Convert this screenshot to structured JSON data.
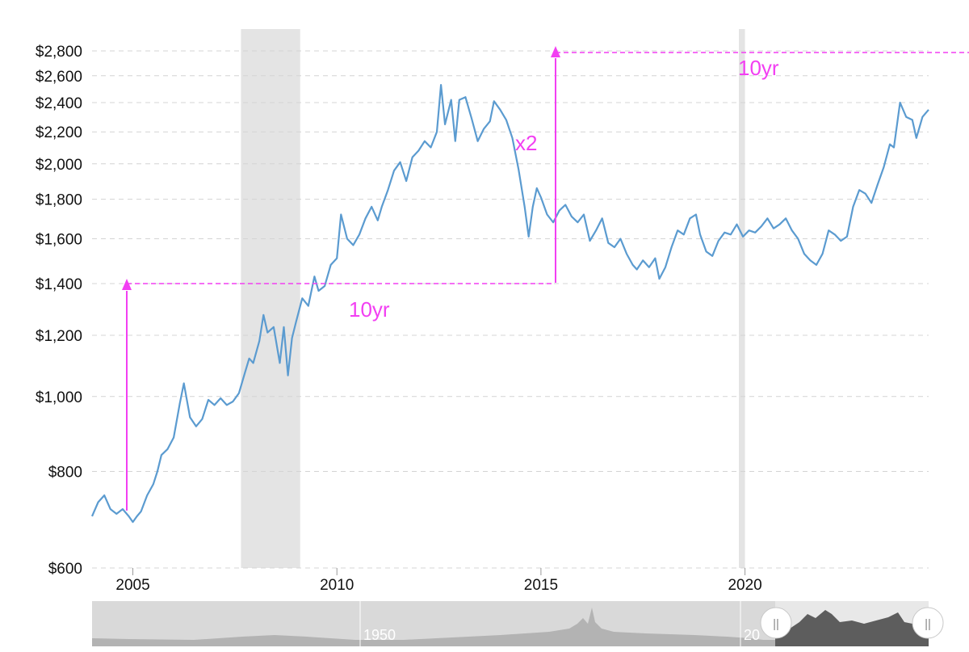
{
  "chart_data": {
    "type": "line",
    "scale": "log",
    "ylim": [
      600,
      2800
    ],
    "xlim": [
      2004.0,
      2024.5
    ],
    "yticks": [
      {
        "value": 600,
        "label": "$600"
      },
      {
        "value": 800,
        "label": "$800"
      },
      {
        "value": 1000,
        "label": "$1,000"
      },
      {
        "value": 1200,
        "label": "$1,200"
      },
      {
        "value": 1400,
        "label": "$1,400"
      },
      {
        "value": 1600,
        "label": "$1,600"
      },
      {
        "value": 1800,
        "label": "$1,800"
      },
      {
        "value": 2000,
        "label": "$2,000"
      },
      {
        "value": 2200,
        "label": "$2,200"
      },
      {
        "value": 2400,
        "label": "$2,400"
      },
      {
        "value": 2600,
        "label": "$2,600"
      },
      {
        "value": 2800,
        "label": "$2,800"
      }
    ],
    "xticks": [
      {
        "value": 2005,
        "label": "2005"
      },
      {
        "value": 2010,
        "label": "2010"
      },
      {
        "value": 2015,
        "label": "2015"
      },
      {
        "value": 2020,
        "label": "2020"
      }
    ],
    "grid": true,
    "series": [
      {
        "color": "#5b9bd0",
        "points": [
          [
            2004.0,
            700
          ],
          [
            2004.15,
            730
          ],
          [
            2004.3,
            745
          ],
          [
            2004.45,
            715
          ],
          [
            2004.6,
            705
          ],
          [
            2004.75,
            715
          ],
          [
            2004.9,
            700
          ],
          [
            2005.0,
            688
          ],
          [
            2005.1,
            700
          ],
          [
            2005.2,
            710
          ],
          [
            2005.35,
            745
          ],
          [
            2005.5,
            770
          ],
          [
            2005.6,
            800
          ],
          [
            2005.7,
            840
          ],
          [
            2005.85,
            855
          ],
          [
            2006.0,
            885
          ],
          [
            2006.15,
            980
          ],
          [
            2006.25,
            1040
          ],
          [
            2006.4,
            940
          ],
          [
            2006.55,
            915
          ],
          [
            2006.7,
            935
          ],
          [
            2006.85,
            990
          ],
          [
            2007.0,
            975
          ],
          [
            2007.15,
            995
          ],
          [
            2007.3,
            975
          ],
          [
            2007.45,
            985
          ],
          [
            2007.6,
            1010
          ],
          [
            2007.75,
            1075
          ],
          [
            2007.85,
            1120
          ],
          [
            2007.95,
            1105
          ],
          [
            2008.1,
            1180
          ],
          [
            2008.2,
            1275
          ],
          [
            2008.3,
            1210
          ],
          [
            2008.45,
            1230
          ],
          [
            2008.6,
            1105
          ],
          [
            2008.7,
            1230
          ],
          [
            2008.8,
            1065
          ],
          [
            2008.9,
            1190
          ],
          [
            2009.0,
            1250
          ],
          [
            2009.15,
            1340
          ],
          [
            2009.3,
            1310
          ],
          [
            2009.45,
            1430
          ],
          [
            2009.55,
            1370
          ],
          [
            2009.7,
            1390
          ],
          [
            2009.85,
            1480
          ],
          [
            2010.0,
            1510
          ],
          [
            2010.1,
            1720
          ],
          [
            2010.25,
            1600
          ],
          [
            2010.4,
            1570
          ],
          [
            2010.55,
            1620
          ],
          [
            2010.7,
            1700
          ],
          [
            2010.85,
            1760
          ],
          [
            2011.0,
            1690
          ],
          [
            2011.1,
            1760
          ],
          [
            2011.25,
            1850
          ],
          [
            2011.4,
            1960
          ],
          [
            2011.55,
            2010
          ],
          [
            2011.7,
            1900
          ],
          [
            2011.85,
            2040
          ],
          [
            2012.0,
            2080
          ],
          [
            2012.15,
            2140
          ],
          [
            2012.3,
            2100
          ],
          [
            2012.45,
            2200
          ],
          [
            2012.55,
            2530
          ],
          [
            2012.65,
            2250
          ],
          [
            2012.8,
            2420
          ],
          [
            2012.9,
            2140
          ],
          [
            2013.0,
            2420
          ],
          [
            2013.15,
            2440
          ],
          [
            2013.3,
            2290
          ],
          [
            2013.45,
            2140
          ],
          [
            2013.6,
            2220
          ],
          [
            2013.75,
            2270
          ],
          [
            2013.85,
            2410
          ],
          [
            2014.0,
            2350
          ],
          [
            2014.15,
            2280
          ],
          [
            2014.3,
            2160
          ],
          [
            2014.45,
            1970
          ],
          [
            2014.6,
            1760
          ],
          [
            2014.7,
            1610
          ],
          [
            2014.8,
            1760
          ],
          [
            2014.9,
            1860
          ],
          [
            2015.0,
            1810
          ],
          [
            2015.15,
            1720
          ],
          [
            2015.3,
            1680
          ],
          [
            2015.45,
            1740
          ],
          [
            2015.6,
            1770
          ],
          [
            2015.75,
            1710
          ],
          [
            2015.9,
            1680
          ],
          [
            2016.05,
            1720
          ],
          [
            2016.2,
            1590
          ],
          [
            2016.35,
            1640
          ],
          [
            2016.5,
            1700
          ],
          [
            2016.65,
            1580
          ],
          [
            2016.8,
            1560
          ],
          [
            2016.95,
            1600
          ],
          [
            2017.1,
            1530
          ],
          [
            2017.25,
            1480
          ],
          [
            2017.35,
            1460
          ],
          [
            2017.5,
            1500
          ],
          [
            2017.65,
            1470
          ],
          [
            2017.8,
            1510
          ],
          [
            2017.9,
            1420
          ],
          [
            2018.05,
            1470
          ],
          [
            2018.2,
            1560
          ],
          [
            2018.35,
            1640
          ],
          [
            2018.5,
            1620
          ],
          [
            2018.65,
            1700
          ],
          [
            2018.8,
            1720
          ],
          [
            2018.9,
            1620
          ],
          [
            2019.05,
            1540
          ],
          [
            2019.2,
            1520
          ],
          [
            2019.35,
            1590
          ],
          [
            2019.5,
            1630
          ],
          [
            2019.65,
            1620
          ],
          [
            2019.8,
            1670
          ],
          [
            2019.95,
            1610
          ],
          [
            2020.1,
            1640
          ],
          [
            2020.25,
            1630
          ],
          [
            2020.4,
            1660
          ],
          [
            2020.55,
            1700
          ],
          [
            2020.7,
            1650
          ],
          [
            2020.85,
            1670
          ],
          [
            2021.0,
            1700
          ],
          [
            2021.15,
            1640
          ],
          [
            2021.3,
            1600
          ],
          [
            2021.45,
            1530
          ],
          [
            2021.6,
            1500
          ],
          [
            2021.75,
            1480
          ],
          [
            2021.9,
            1530
          ],
          [
            2022.05,
            1640
          ],
          [
            2022.2,
            1620
          ],
          [
            2022.35,
            1590
          ],
          [
            2022.5,
            1610
          ],
          [
            2022.65,
            1760
          ],
          [
            2022.8,
            1850
          ],
          [
            2022.95,
            1830
          ],
          [
            2023.1,
            1780
          ],
          [
            2023.25,
            1880
          ],
          [
            2023.4,
            1980
          ],
          [
            2023.55,
            2120
          ],
          [
            2023.65,
            2100
          ],
          [
            2023.8,
            2400
          ],
          [
            2023.95,
            2300
          ],
          [
            2024.1,
            2280
          ],
          [
            2024.2,
            2160
          ],
          [
            2024.35,
            2300
          ],
          [
            2024.5,
            2350
          ]
        ]
      }
    ],
    "recessions": [
      [
        2007.65,
        2009.1
      ],
      [
        2019.85,
        2020.0
      ]
    ],
    "annotations": [
      {
        "label": "10yr"
      },
      {
        "label": "x2"
      },
      {
        "label": "10yr"
      }
    ],
    "navigator": {
      "label_1950": "1950",
      "label_20": "20",
      "handle_left": "||",
      "handle_right": "||"
    }
  },
  "colors": {
    "line": "#5b9bd0",
    "annotation": "#f23ff2",
    "recession": "#e4e4e4",
    "grid": "#d4d4d4"
  }
}
